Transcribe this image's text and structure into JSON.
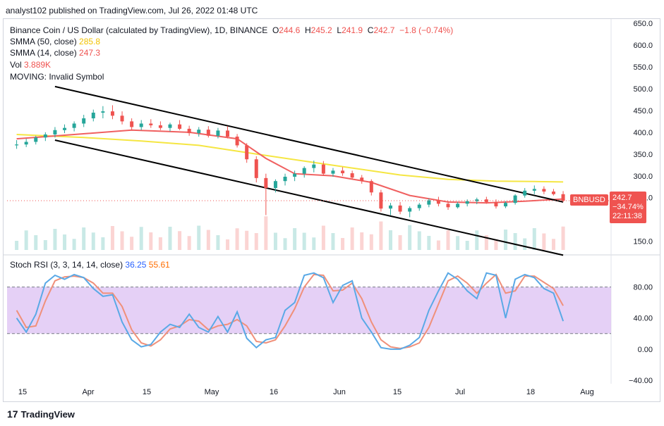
{
  "header": {
    "caption": "analyst102 published on TradingView.com, Jul 26, 2022 01:48 UTC"
  },
  "legend": {
    "symbol": "Binance Coin / US Dollar (calculated by TradingView), 1D, BINANCE",
    "ohlc": {
      "o_label": "O",
      "o": "244.6",
      "h_label": "H",
      "h": "245.2",
      "l_label": "L",
      "l": "241.9",
      "c_label": "C",
      "c": "242.7",
      "chg": "−1.8 (−0.74%)"
    },
    "smma50_label": "SMMA (50, close)",
    "smma50_value": "285.8",
    "smma14_label": "SMMA (14, close)",
    "smma14_value": "247.3",
    "vol_label": "Vol",
    "vol_value": "3.889K",
    "moving_label": "MOVING: Invalid Symbol"
  },
  "stoch_legend": {
    "label": "Stoch RSI (3, 3, 14, 14, close)",
    "k": "36.25",
    "d": "55.61"
  },
  "price_tag": {
    "symbol": "BNBUSD",
    "price": "242.7",
    "change": "−34.74%",
    "countdown": "22:11:38"
  },
  "footer": {
    "brand": "TradingView",
    "logo_text": "17"
  },
  "colors": {
    "up": "#26a69a",
    "down": "#ef5350",
    "smma50": "#f5e642",
    "smma14": "#f06060",
    "channel": "#000000",
    "k_line": "#5aa9e6",
    "d_line": "#f0907a",
    "band": "#e1c8f5"
  },
  "chart_data": [
    {
      "type": "line",
      "title": "Binance Coin / US Dollar (calculated by TradingView), 1D, BINANCE",
      "x": [
        "15",
        "Apr",
        "15",
        "May",
        "16",
        "Jun",
        "15",
        "Jul",
        "18",
        "Aug"
      ],
      "y_ticks": [
        "650.0",
        "600.0",
        "550.0",
        "500.0",
        "450.0",
        "400.0",
        "350.0",
        "300.0",
        "250.0",
        "150.0"
      ],
      "ylim": [
        130,
        655
      ],
      "candles": [
        {
          "d": 0,
          "o": 370,
          "h": 382,
          "l": 362,
          "c": 372
        },
        {
          "d": 2,
          "o": 372,
          "h": 385,
          "l": 366,
          "c": 378
        },
        {
          "d": 4,
          "o": 378,
          "h": 392,
          "l": 372,
          "c": 388
        },
        {
          "d": 6,
          "o": 388,
          "h": 400,
          "l": 380,
          "c": 395
        },
        {
          "d": 8,
          "o": 395,
          "h": 412,
          "l": 388,
          "c": 405
        },
        {
          "d": 10,
          "o": 405,
          "h": 418,
          "l": 398,
          "c": 410
        },
        {
          "d": 12,
          "o": 410,
          "h": 425,
          "l": 402,
          "c": 420
        },
        {
          "d": 14,
          "o": 420,
          "h": 440,
          "l": 412,
          "c": 432
        },
        {
          "d": 16,
          "o": 432,
          "h": 452,
          "l": 425,
          "c": 445
        },
        {
          "d": 18,
          "o": 445,
          "h": 460,
          "l": 432,
          "c": 448
        },
        {
          "d": 20,
          "o": 448,
          "h": 462,
          "l": 430,
          "c": 438
        },
        {
          "d": 22,
          "o": 438,
          "h": 448,
          "l": 418,
          "c": 425
        },
        {
          "d": 24,
          "o": 425,
          "h": 432,
          "l": 405,
          "c": 412
        },
        {
          "d": 26,
          "o": 412,
          "h": 428,
          "l": 405,
          "c": 420
        },
        {
          "d": 28,
          "o": 420,
          "h": 430,
          "l": 410,
          "c": 416
        },
        {
          "d": 30,
          "o": 416,
          "h": 425,
          "l": 405,
          "c": 410
        },
        {
          "d": 32,
          "o": 410,
          "h": 422,
          "l": 402,
          "c": 418
        },
        {
          "d": 34,
          "o": 418,
          "h": 428,
          "l": 405,
          "c": 408
        },
        {
          "d": 36,
          "o": 408,
          "h": 415,
          "l": 392,
          "c": 398
        },
        {
          "d": 38,
          "o": 398,
          "h": 412,
          "l": 390,
          "c": 406
        },
        {
          "d": 40,
          "o": 406,
          "h": 414,
          "l": 388,
          "c": 392
        },
        {
          "d": 42,
          "o": 392,
          "h": 410,
          "l": 386,
          "c": 404
        },
        {
          "d": 44,
          "o": 404,
          "h": 414,
          "l": 386,
          "c": 390
        },
        {
          "d": 46,
          "o": 390,
          "h": 396,
          "l": 365,
          "c": 370
        },
        {
          "d": 48,
          "o": 370,
          "h": 375,
          "l": 330,
          "c": 338
        },
        {
          "d": 50,
          "o": 338,
          "h": 345,
          "l": 285,
          "c": 295
        },
        {
          "d": 52,
          "o": 295,
          "h": 305,
          "l": 210,
          "c": 272
        },
        {
          "d": 54,
          "o": 272,
          "h": 292,
          "l": 262,
          "c": 288
        },
        {
          "d": 56,
          "o": 288,
          "h": 305,
          "l": 278,
          "c": 298
        },
        {
          "d": 58,
          "o": 298,
          "h": 312,
          "l": 288,
          "c": 305
        },
        {
          "d": 60,
          "o": 305,
          "h": 322,
          "l": 296,
          "c": 318
        },
        {
          "d": 62,
          "o": 318,
          "h": 335,
          "l": 308,
          "c": 326
        },
        {
          "d": 64,
          "o": 326,
          "h": 334,
          "l": 300,
          "c": 305
        },
        {
          "d": 66,
          "o": 305,
          "h": 318,
          "l": 298,
          "c": 312
        },
        {
          "d": 68,
          "o": 312,
          "h": 320,
          "l": 300,
          "c": 306
        },
        {
          "d": 70,
          "o": 306,
          "h": 312,
          "l": 292,
          "c": 296
        },
        {
          "d": 72,
          "o": 296,
          "h": 302,
          "l": 282,
          "c": 288
        },
        {
          "d": 74,
          "o": 288,
          "h": 292,
          "l": 255,
          "c": 262
        },
        {
          "d": 76,
          "o": 262,
          "h": 268,
          "l": 218,
          "c": 225
        },
        {
          "d": 78,
          "o": 225,
          "h": 238,
          "l": 210,
          "c": 232
        },
        {
          "d": 80,
          "o": 232,
          "h": 240,
          "l": 212,
          "c": 218
        },
        {
          "d": 82,
          "o": 218,
          "h": 230,
          "l": 205,
          "c": 226
        },
        {
          "d": 84,
          "o": 226,
          "h": 238,
          "l": 220,
          "c": 234
        },
        {
          "d": 86,
          "o": 234,
          "h": 248,
          "l": 228,
          "c": 244
        },
        {
          "d": 88,
          "o": 244,
          "h": 252,
          "l": 230,
          "c": 236
        },
        {
          "d": 90,
          "o": 236,
          "h": 242,
          "l": 222,
          "c": 228
        },
        {
          "d": 92,
          "o": 228,
          "h": 240,
          "l": 225,
          "c": 236
        },
        {
          "d": 94,
          "o": 236,
          "h": 246,
          "l": 230,
          "c": 242
        },
        {
          "d": 96,
          "o": 242,
          "h": 250,
          "l": 235,
          "c": 246
        },
        {
          "d": 98,
          "o": 246,
          "h": 252,
          "l": 236,
          "c": 240
        },
        {
          "d": 100,
          "o": 240,
          "h": 246,
          "l": 225,
          "c": 230
        },
        {
          "d": 102,
          "o": 230,
          "h": 242,
          "l": 226,
          "c": 238
        },
        {
          "d": 104,
          "o": 238,
          "h": 258,
          "l": 234,
          "c": 255
        },
        {
          "d": 106,
          "o": 255,
          "h": 272,
          "l": 250,
          "c": 266
        },
        {
          "d": 108,
          "o": 266,
          "h": 278,
          "l": 258,
          "c": 270
        },
        {
          "d": 110,
          "o": 270,
          "h": 276,
          "l": 258,
          "c": 264
        },
        {
          "d": 112,
          "o": 264,
          "h": 270,
          "l": 255,
          "c": 258
        },
        {
          "d": 114,
          "o": 258,
          "h": 265,
          "l": 240,
          "c": 243
        }
      ],
      "smma50": [
        [
          0,
          395
        ],
        [
          14,
          388
        ],
        [
          26,
          380
        ],
        [
          38,
          370
        ],
        [
          50,
          350
        ],
        [
          60,
          334
        ],
        [
          70,
          318
        ],
        [
          80,
          302
        ],
        [
          90,
          292
        ],
        [
          100,
          288
        ],
        [
          108,
          287
        ],
        [
          114,
          286
        ]
      ],
      "smma14": [
        [
          0,
          385
        ],
        [
          12,
          395
        ],
        [
          24,
          405
        ],
        [
          36,
          400
        ],
        [
          46,
          385
        ],
        [
          52,
          340
        ],
        [
          58,
          305
        ],
        [
          66,
          300
        ],
        [
          74,
          285
        ],
        [
          82,
          255
        ],
        [
          90,
          240
        ],
        [
          98,
          238
        ],
        [
          106,
          242
        ],
        [
          114,
          247
        ]
      ],
      "channel_upper": [
        [
          8,
          505
        ],
        [
          114,
          240
        ]
      ],
      "channel_lower": [
        [
          8,
          382
        ],
        [
          114,
          118
        ]
      ]
    },
    {
      "type": "line",
      "title": "Stoch RSI (3, 3, 14, 14, close)",
      "y_ticks": [
        "80.00",
        "40.00",
        "0.00",
        "−40.00"
      ],
      "ylim": [
        -40,
        105
      ],
      "band": [
        20,
        80
      ],
      "series": [
        {
          "name": "36.25",
          "values": [
            [
              0,
              40
            ],
            [
              2,
              22
            ],
            [
              4,
              45
            ],
            [
              6,
              85
            ],
            [
              8,
              95
            ],
            [
              10,
              90
            ],
            [
              12,
              96
            ],
            [
              14,
              92
            ],
            [
              16,
              78
            ],
            [
              18,
              68
            ],
            [
              20,
              70
            ],
            [
              22,
              35
            ],
            [
              24,
              12
            ],
            [
              26,
              3
            ],
            [
              28,
              6
            ],
            [
              30,
              22
            ],
            [
              32,
              32
            ],
            [
              34,
              28
            ],
            [
              36,
              45
            ],
            [
              38,
              28
            ],
            [
              40,
              22
            ],
            [
              42,
              42
            ],
            [
              44,
              22
            ],
            [
              46,
              48
            ],
            [
              48,
              14
            ],
            [
              50,
              2
            ],
            [
              52,
              12
            ],
            [
              54,
              15
            ],
            [
              56,
              50
            ],
            [
              58,
              60
            ],
            [
              60,
              95
            ],
            [
              62,
              98
            ],
            [
              64,
              92
            ],
            [
              66,
              60
            ],
            [
              68,
              82
            ],
            [
              70,
              88
            ],
            [
              72,
              40
            ],
            [
              74,
              22
            ],
            [
              76,
              2
            ],
            [
              78,
              0
            ],
            [
              80,
              0
            ],
            [
              82,
              5
            ],
            [
              84,
              15
            ],
            [
              86,
              50
            ],
            [
              88,
              75
            ],
            [
              90,
              98
            ],
            [
              92,
              90
            ],
            [
              94,
              75
            ],
            [
              96,
              65
            ],
            [
              98,
              98
            ],
            [
              100,
              95
            ],
            [
              102,
              40
            ],
            [
              104,
              90
            ],
            [
              106,
              96
            ],
            [
              108,
              92
            ],
            [
              110,
              78
            ],
            [
              112,
              72
            ],
            [
              114,
              36
            ]
          ]
        },
        {
          "name": "55.61",
          "values": [
            [
              0,
              50
            ],
            [
              2,
              28
            ],
            [
              4,
              30
            ],
            [
              6,
              62
            ],
            [
              8,
              88
            ],
            [
              10,
              93
            ],
            [
              12,
              94
            ],
            [
              14,
              92
            ],
            [
              16,
              85
            ],
            [
              18,
              72
            ],
            [
              20,
              72
            ],
            [
              22,
              55
            ],
            [
              24,
              25
            ],
            [
              26,
              8
            ],
            [
              28,
              4
            ],
            [
              30,
              12
            ],
            [
              32,
              26
            ],
            [
              34,
              30
            ],
            [
              36,
              38
            ],
            [
              38,
              36
            ],
            [
              40,
              25
            ],
            [
              42,
              30
            ],
            [
              44,
              32
            ],
            [
              46,
              38
            ],
            [
              48,
              30
            ],
            [
              50,
              10
            ],
            [
              52,
              8
            ],
            [
              54,
              12
            ],
            [
              56,
              30
            ],
            [
              58,
              52
            ],
            [
              60,
              80
            ],
            [
              62,
              96
            ],
            [
              64,
              95
            ],
            [
              66,
              75
            ],
            [
              68,
              76
            ],
            [
              70,
              85
            ],
            [
              72,
              65
            ],
            [
              74,
              35
            ],
            [
              76,
              12
            ],
            [
              78,
              3
            ],
            [
              80,
              1
            ],
            [
              82,
              3
            ],
            [
              84,
              8
            ],
            [
              86,
              28
            ],
            [
              88,
              58
            ],
            [
              90,
              88
            ],
            [
              92,
              94
            ],
            [
              94,
              85
            ],
            [
              96,
              72
            ],
            [
              98,
              85
            ],
            [
              100,
              96
            ],
            [
              102,
              72
            ],
            [
              104,
              75
            ],
            [
              106,
              94
            ],
            [
              108,
              94
            ],
            [
              110,
              86
            ],
            [
              112,
              78
            ],
            [
              114,
              56
            ]
          ]
        }
      ]
    }
  ]
}
